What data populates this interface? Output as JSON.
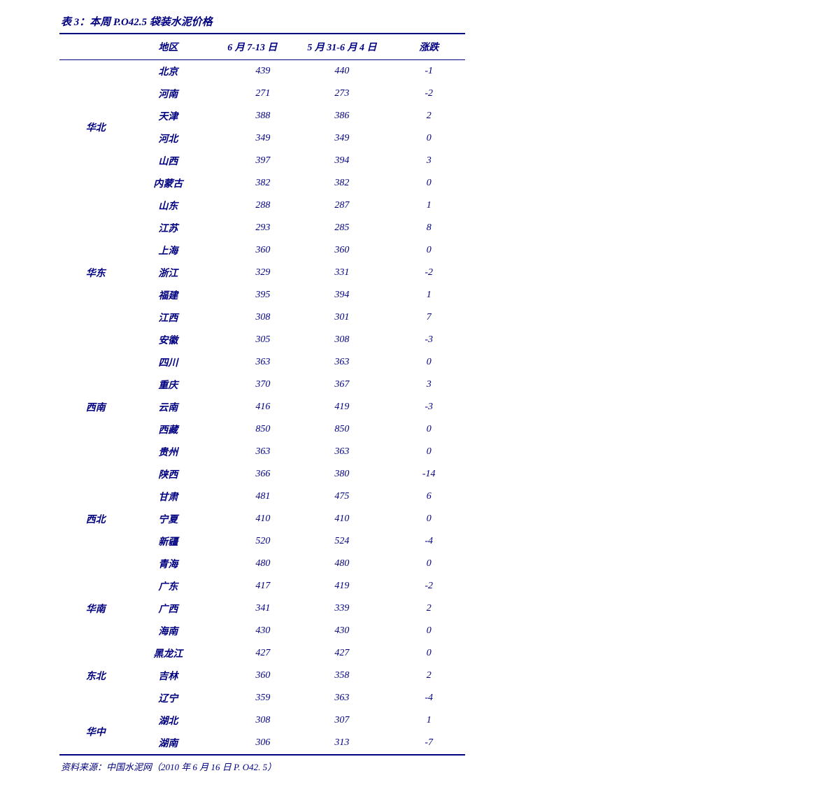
{
  "title": "表 3：本周 P.O42.5 袋装水泥价格",
  "columns": {
    "region": "",
    "province": "地区",
    "period1": "6 月 7-13 日",
    "period2": "5 月 31-6 月 4 日",
    "change": "涨跌"
  },
  "regions": [
    {
      "name": "华北",
      "rows": [
        {
          "province": "北京",
          "v1": "439",
          "v2": "440",
          "chg": "-1"
        },
        {
          "province": "河南",
          "v1": "271",
          "v2": "273",
          "chg": "-2"
        },
        {
          "province": "天津",
          "v1": "388",
          "v2": "386",
          "chg": "2"
        },
        {
          "province": "河北",
          "v1": "349",
          "v2": "349",
          "chg": "0"
        },
        {
          "province": "山西",
          "v1": "397",
          "v2": "394",
          "chg": "3"
        },
        {
          "province": "内蒙古",
          "v1": "382",
          "v2": "382",
          "chg": "0"
        }
      ],
      "label_row_index": 2
    },
    {
      "name": "华东",
      "rows": [
        {
          "province": "山东",
          "v1": "288",
          "v2": "287",
          "chg": "1"
        },
        {
          "province": "江苏",
          "v1": "293",
          "v2": "285",
          "chg": "8"
        },
        {
          "province": "上海",
          "v1": "360",
          "v2": "360",
          "chg": "0"
        },
        {
          "province": "浙江",
          "v1": "329",
          "v2": "331",
          "chg": "-2"
        },
        {
          "province": "福建",
          "v1": "395",
          "v2": "394",
          "chg": "1"
        },
        {
          "province": "江西",
          "v1": "308",
          "v2": "301",
          "chg": "7"
        },
        {
          "province": "安徽",
          "v1": "305",
          "v2": "308",
          "chg": "-3"
        }
      ],
      "label_row_index": 3
    },
    {
      "name": "西南",
      "rows": [
        {
          "province": "四川",
          "v1": "363",
          "v2": "363",
          "chg": "0"
        },
        {
          "province": "重庆",
          "v1": "370",
          "v2": "367",
          "chg": "3"
        },
        {
          "province": "云南",
          "v1": "416",
          "v2": "419",
          "chg": "-3"
        },
        {
          "province": "西藏",
          "v1": "850",
          "v2": "850",
          "chg": "0"
        },
        {
          "province": "贵州",
          "v1": "363",
          "v2": "363",
          "chg": "0"
        }
      ],
      "label_row_index": 2
    },
    {
      "name": "西北",
      "rows": [
        {
          "province": "陕西",
          "v1": "366",
          "v2": "380",
          "chg": "-14"
        },
        {
          "province": "甘肃",
          "v1": "481",
          "v2": "475",
          "chg": "6"
        },
        {
          "province": "宁夏",
          "v1": "410",
          "v2": "410",
          "chg": "0"
        },
        {
          "province": "新疆",
          "v1": "520",
          "v2": "524",
          "chg": "-4"
        },
        {
          "province": "青海",
          "v1": "480",
          "v2": "480",
          "chg": "0"
        }
      ],
      "label_row_index": 2
    },
    {
      "name": "华南",
      "rows": [
        {
          "province": "广东",
          "v1": "417",
          "v2": "419",
          "chg": "-2"
        },
        {
          "province": "广西",
          "v1": "341",
          "v2": "339",
          "chg": "2"
        },
        {
          "province": "海南",
          "v1": "430",
          "v2": "430",
          "chg": "0"
        }
      ],
      "label_row_index": 1
    },
    {
      "name": "东北",
      "rows": [
        {
          "province": "黑龙江",
          "v1": "427",
          "v2": "427",
          "chg": "0"
        },
        {
          "province": "吉林",
          "v1": "360",
          "v2": "358",
          "chg": "2"
        },
        {
          "province": "辽宁",
          "v1": "359",
          "v2": "363",
          "chg": "-4"
        }
      ],
      "label_row_index": 1
    },
    {
      "name": "华中",
      "rows": [
        {
          "province": "湖北",
          "v1": "308",
          "v2": "307",
          "chg": "1"
        },
        {
          "province": "湖南",
          "v1": "306",
          "v2": "313",
          "chg": "-7"
        }
      ],
      "label_row_index": 0
    }
  ],
  "source": "资料来源：中国水泥网（2010 年 6 月 16 日 P. O42. 5）",
  "colors": {
    "text": "#000080",
    "border": "#000080",
    "background": "#ffffff"
  },
  "typography": {
    "title_fontsize": 15,
    "header_fontsize": 14,
    "cell_fontsize": 14,
    "source_fontsize": 13,
    "font_family": "SimSun"
  }
}
